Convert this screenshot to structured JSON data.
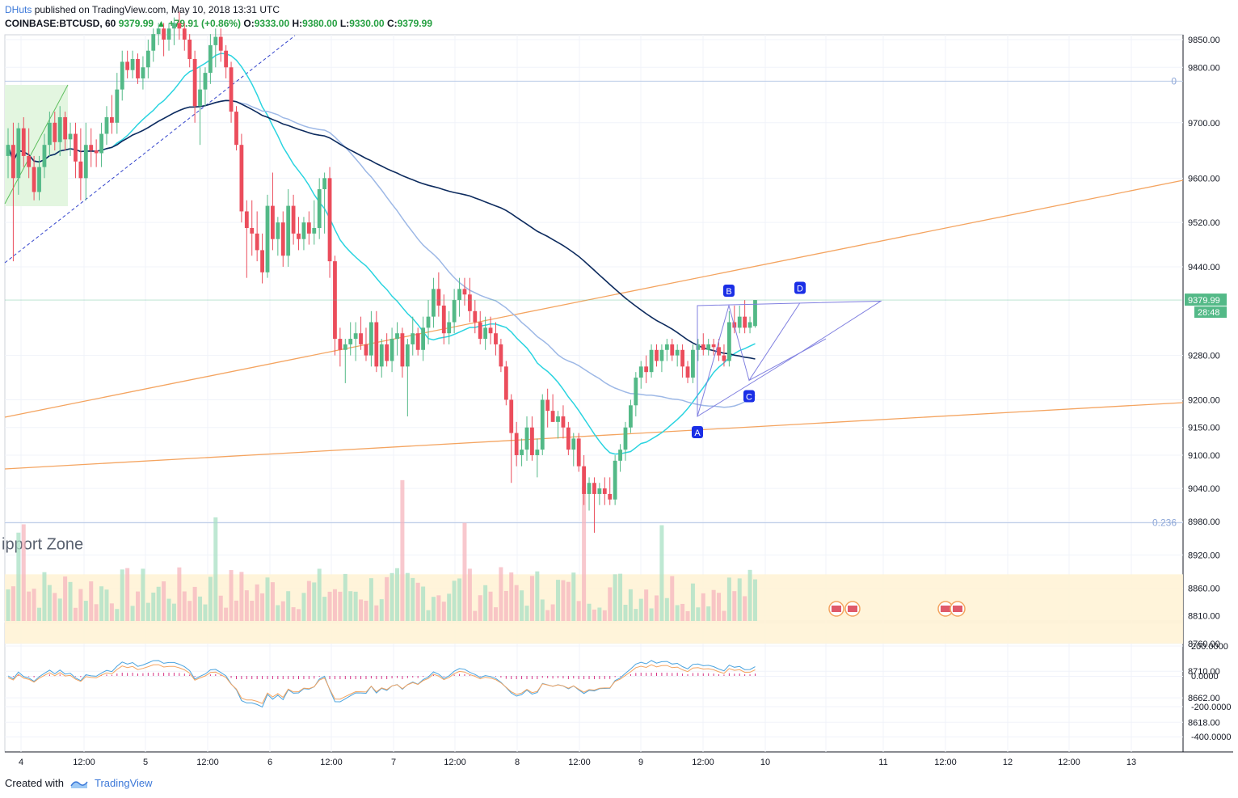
{
  "header": {
    "author": "DHuts",
    "published_on": "published on TradingView.com, May 10, 2018 13:31 UTC",
    "symbol": "COINBASE:BTCUSD, 60",
    "last": "9379.99",
    "change": "▲ +79.91 (+0.86%)",
    "o_label": "O:",
    "o_value": "9333.00",
    "h_label": "H:",
    "h_value": "9380.00",
    "l_label": "L:",
    "l_value": "9330.00",
    "c_label": "C:",
    "c_value": "9379.99"
  },
  "footer": {
    "created_with": "Created with",
    "brand": "TradingView"
  },
  "colors": {
    "up": "#53b987",
    "down": "#eb4d5c",
    "ma_fast": "#2ad4e0",
    "ma_mid": "#9db8e6",
    "ma_slow": "#0d2b5e",
    "trend": "#f4a460",
    "pattern": "#8080e0",
    "zone": "#fff3d6"
  },
  "chart_data": {
    "type": "candlestick",
    "symbol": "COINBASE:BTCUSD",
    "interval": "60",
    "y_ticks": [
      9850,
      9800,
      9700,
      9600,
      9520,
      9440,
      9280,
      9200,
      9150,
      9100,
      9040,
      8980,
      8920,
      8860,
      8810,
      8760,
      8710,
      8662,
      8618
    ],
    "y_tick_labels": [
      "9850.00",
      "9800.00",
      "9700.00",
      "9600.00",
      "9520.00",
      "9440.00",
      "9280.00",
      "9200.00",
      "9150.00",
      "9100.00",
      "9040.00",
      "8980.00",
      "8920.00",
      "8860.00",
      "8810.00",
      "8760.00",
      "8710.00",
      "8662.00",
      "8618.00"
    ],
    "x_tick_labels": [
      "4",
      "12:00",
      "5",
      "12:00",
      "6",
      "12:00",
      "7",
      "12:00",
      "8",
      "12:00",
      "9",
      "12:00",
      "10",
      "",
      "11",
      "12:00",
      "12",
      "12:00",
      "13"
    ],
    "last_price_label": "9379.99",
    "countdown_label": "28:48",
    "fib_labels": [
      {
        "text": "0",
        "price": 9775
      },
      {
        "text": "0.236",
        "price": 8978
      }
    ],
    "pattern_points": [
      {
        "label": "A",
        "price": 9170
      },
      {
        "label": "B",
        "price": 9370
      },
      {
        "label": "C",
        "price": 9235
      },
      {
        "label": "D",
        "price": 9375
      }
    ],
    "zone_label": "ipport Zone",
    "candles": [
      {
        "o": 9640,
        "h": 9690,
        "l": 9600,
        "c": 9660
      },
      {
        "o": 9660,
        "h": 9700,
        "l": 9450,
        "c": 9600
      },
      {
        "o": 9600,
        "h": 9700,
        "l": 9570,
        "c": 9690
      },
      {
        "o": 9690,
        "h": 9710,
        "l": 9620,
        "c": 9640
      },
      {
        "o": 9640,
        "h": 9690,
        "l": 9600,
        "c": 9620
      },
      {
        "o": 9620,
        "h": 9640,
        "l": 9560,
        "c": 9575
      },
      {
        "o": 9575,
        "h": 9640,
        "l": 9560,
        "c": 9620
      },
      {
        "o": 9620,
        "h": 9680,
        "l": 9600,
        "c": 9660
      },
      {
        "o": 9660,
        "h": 9720,
        "l": 9640,
        "c": 9700
      },
      {
        "o": 9700,
        "h": 9720,
        "l": 9650,
        "c": 9665
      },
      {
        "o": 9665,
        "h": 9730,
        "l": 9640,
        "c": 9710
      },
      {
        "o": 9710,
        "h": 9720,
        "l": 9650,
        "c": 9670
      },
      {
        "o": 9670,
        "h": 9700,
        "l": 9640,
        "c": 9680
      },
      {
        "o": 9680,
        "h": 9700,
        "l": 9600,
        "c": 9630
      },
      {
        "o": 9630,
        "h": 9690,
        "l": 9560,
        "c": 9600
      },
      {
        "o": 9600,
        "h": 9700,
        "l": 9560,
        "c": 9660
      },
      {
        "o": 9660,
        "h": 9690,
        "l": 9620,
        "c": 9650
      },
      {
        "o": 9650,
        "h": 9670,
        "l": 9620,
        "c": 9645
      },
      {
        "o": 9645,
        "h": 9700,
        "l": 9620,
        "c": 9680
      },
      {
        "o": 9680,
        "h": 9730,
        "l": 9660,
        "c": 9710
      },
      {
        "o": 9710,
        "h": 9750,
        "l": 9680,
        "c": 9700
      },
      {
        "o": 9700,
        "h": 9790,
        "l": 9680,
        "c": 9760
      },
      {
        "o": 9760,
        "h": 9830,
        "l": 9740,
        "c": 9810
      },
      {
        "o": 9810,
        "h": 9830,
        "l": 9780,
        "c": 9795
      },
      {
        "o": 9795,
        "h": 9830,
        "l": 9780,
        "c": 9815
      },
      {
        "o": 9815,
        "h": 9825,
        "l": 9770,
        "c": 9780
      },
      {
        "o": 9780,
        "h": 9820,
        "l": 9760,
        "c": 9800
      },
      {
        "o": 9800,
        "h": 9850,
        "l": 9780,
        "c": 9830
      },
      {
        "o": 9830,
        "h": 9870,
        "l": 9810,
        "c": 9860
      },
      {
        "o": 9860,
        "h": 9880,
        "l": 9840,
        "c": 9870
      },
      {
        "o": 9870,
        "h": 9880,
        "l": 9820,
        "c": 9850
      },
      {
        "o": 9850,
        "h": 9880,
        "l": 9830,
        "c": 9870
      },
      {
        "o": 9870,
        "h": 9890,
        "l": 9840,
        "c": 9880
      },
      {
        "o": 9880,
        "h": 9900,
        "l": 9850,
        "c": 9870
      },
      {
        "o": 9870,
        "h": 9880,
        "l": 9830,
        "c": 9850
      },
      {
        "o": 9850,
        "h": 9860,
        "l": 9800,
        "c": 9815
      },
      {
        "o": 9815,
        "h": 9830,
        "l": 9700,
        "c": 9730
      },
      {
        "o": 9730,
        "h": 9800,
        "l": 9660,
        "c": 9760
      },
      {
        "o": 9760,
        "h": 9800,
        "l": 9730,
        "c": 9790
      },
      {
        "o": 9790,
        "h": 9860,
        "l": 9770,
        "c": 9840
      },
      {
        "o": 9840,
        "h": 9870,
        "l": 9800,
        "c": 9855
      },
      {
        "o": 9855,
        "h": 9870,
        "l": 9810,
        "c": 9830
      },
      {
        "o": 9830,
        "h": 9840,
        "l": 9780,
        "c": 9800
      },
      {
        "o": 9800,
        "h": 9810,
        "l": 9700,
        "c": 9720
      },
      {
        "o": 9720,
        "h": 9730,
        "l": 9650,
        "c": 9660
      },
      {
        "o": 9660,
        "h": 9680,
        "l": 9520,
        "c": 9540
      },
      {
        "o": 9540,
        "h": 9560,
        "l": 9420,
        "c": 9510
      },
      {
        "o": 9510,
        "h": 9560,
        "l": 9460,
        "c": 9500
      },
      {
        "o": 9500,
        "h": 9540,
        "l": 9450,
        "c": 9470
      },
      {
        "o": 9470,
        "h": 9500,
        "l": 9410,
        "c": 9430
      },
      {
        "o": 9430,
        "h": 9570,
        "l": 9420,
        "c": 9550
      },
      {
        "o": 9550,
        "h": 9610,
        "l": 9470,
        "c": 9490
      },
      {
        "o": 9490,
        "h": 9530,
        "l": 9460,
        "c": 9520
      },
      {
        "o": 9520,
        "h": 9540,
        "l": 9440,
        "c": 9460
      },
      {
        "o": 9460,
        "h": 9580,
        "l": 9440,
        "c": 9550
      },
      {
        "o": 9550,
        "h": 9570,
        "l": 9480,
        "c": 9500
      },
      {
        "o": 9500,
        "h": 9530,
        "l": 9470,
        "c": 9490
      },
      {
        "o": 9490,
        "h": 9530,
        "l": 9470,
        "c": 9520
      },
      {
        "o": 9520,
        "h": 9540,
        "l": 9480,
        "c": 9500
      },
      {
        "o": 9500,
        "h": 9560,
        "l": 9480,
        "c": 9510
      },
      {
        "o": 9510,
        "h": 9600,
        "l": 9490,
        "c": 9580
      },
      {
        "o": 9580,
        "h": 9610,
        "l": 9500,
        "c": 9600
      },
      {
        "o": 9600,
        "h": 9620,
        "l": 9420,
        "c": 9450
      },
      {
        "o": 9450,
        "h": 9460,
        "l": 9280,
        "c": 9310
      },
      {
        "o": 9310,
        "h": 9330,
        "l": 9260,
        "c": 9290
      },
      {
        "o": 9290,
        "h": 9310,
        "l": 9230,
        "c": 9300
      },
      {
        "o": 9300,
        "h": 9340,
        "l": 9280,
        "c": 9310
      },
      {
        "o": 9310,
        "h": 9340,
        "l": 9270,
        "c": 9320
      },
      {
        "o": 9320,
        "h": 9350,
        "l": 9290,
        "c": 9300
      },
      {
        "o": 9300,
        "h": 9330,
        "l": 9270,
        "c": 9280
      },
      {
        "o": 9280,
        "h": 9360,
        "l": 9260,
        "c": 9340
      },
      {
        "o": 9340,
        "h": 9360,
        "l": 9250,
        "c": 9260
      },
      {
        "o": 9260,
        "h": 9310,
        "l": 9240,
        "c": 9300
      },
      {
        "o": 9300,
        "h": 9320,
        "l": 9260,
        "c": 9270
      },
      {
        "o": 9270,
        "h": 9330,
        "l": 9250,
        "c": 9310
      },
      {
        "o": 9310,
        "h": 9340,
        "l": 9280,
        "c": 9320
      },
      {
        "o": 9320,
        "h": 9330,
        "l": 9240,
        "c": 9260
      },
      {
        "o": 9260,
        "h": 9310,
        "l": 9170,
        "c": 9300
      },
      {
        "o": 9300,
        "h": 9350,
        "l": 9280,
        "c": 9320
      },
      {
        "o": 9320,
        "h": 9330,
        "l": 9280,
        "c": 9290
      },
      {
        "o": 9290,
        "h": 9350,
        "l": 9270,
        "c": 9330
      },
      {
        "o": 9330,
        "h": 9380,
        "l": 9300,
        "c": 9350
      },
      {
        "o": 9350,
        "h": 9420,
        "l": 9330,
        "c": 9400
      },
      {
        "o": 9400,
        "h": 9430,
        "l": 9350,
        "c": 9370
      },
      {
        "o": 9370,
        "h": 9390,
        "l": 9300,
        "c": 9320
      },
      {
        "o": 9320,
        "h": 9360,
        "l": 9300,
        "c": 9340
      },
      {
        "o": 9340,
        "h": 9400,
        "l": 9320,
        "c": 9380
      },
      {
        "o": 9380,
        "h": 9420,
        "l": 9350,
        "c": 9400
      },
      {
        "o": 9400,
        "h": 9420,
        "l": 9370,
        "c": 9390
      },
      {
        "o": 9390,
        "h": 9420,
        "l": 9340,
        "c": 9360
      },
      {
        "o": 9360,
        "h": 9380,
        "l": 9320,
        "c": 9340
      },
      {
        "o": 9340,
        "h": 9360,
        "l": 9300,
        "c": 9310
      },
      {
        "o": 9310,
        "h": 9350,
        "l": 9290,
        "c": 9330
      },
      {
        "o": 9330,
        "h": 9350,
        "l": 9300,
        "c": 9320
      },
      {
        "o": 9320,
        "h": 9340,
        "l": 9280,
        "c": 9300
      },
      {
        "o": 9300,
        "h": 9310,
        "l": 9250,
        "c": 9260
      },
      {
        "o": 9260,
        "h": 9270,
        "l": 9190,
        "c": 9200
      },
      {
        "o": 9200,
        "h": 9210,
        "l": 9050,
        "c": 9140
      },
      {
        "o": 9140,
        "h": 9160,
        "l": 9080,
        "c": 9100
      },
      {
        "o": 9100,
        "h": 9130,
        "l": 9080,
        "c": 9110
      },
      {
        "o": 9110,
        "h": 9170,
        "l": 9090,
        "c": 9150
      },
      {
        "o": 9150,
        "h": 9170,
        "l": 9090,
        "c": 9100
      },
      {
        "o": 9100,
        "h": 9130,
        "l": 9060,
        "c": 9110
      },
      {
        "o": 9110,
        "h": 9210,
        "l": 9100,
        "c": 9200
      },
      {
        "o": 9200,
        "h": 9220,
        "l": 9150,
        "c": 9180
      },
      {
        "o": 9180,
        "h": 9210,
        "l": 9160,
        "c": 9160
      },
      {
        "o": 9160,
        "h": 9180,
        "l": 9130,
        "c": 9170
      },
      {
        "o": 9170,
        "h": 9190,
        "l": 9130,
        "c": 9150
      },
      {
        "o": 9150,
        "h": 9160,
        "l": 9100,
        "c": 9110
      },
      {
        "o": 9110,
        "h": 9140,
        "l": 9080,
        "c": 9130
      },
      {
        "o": 9130,
        "h": 9140,
        "l": 9070,
        "c": 9080
      },
      {
        "o": 9080,
        "h": 9100,
        "l": 9010,
        "c": 9030
      },
      {
        "o": 9030,
        "h": 9060,
        "l": 9000,
        "c": 9050
      },
      {
        "o": 9050,
        "h": 9060,
        "l": 8960,
        "c": 9030
      },
      {
        "o": 9030,
        "h": 9050,
        "l": 9010,
        "c": 9040
      },
      {
        "o": 9040,
        "h": 9060,
        "l": 9010,
        "c": 9030
      },
      {
        "o": 9030,
        "h": 9060,
        "l": 9010,
        "c": 9020
      },
      {
        "o": 9020,
        "h": 9100,
        "l": 9010,
        "c": 9090
      },
      {
        "o": 9090,
        "h": 9120,
        "l": 9070,
        "c": 9110
      },
      {
        "o": 9110,
        "h": 9160,
        "l": 9090,
        "c": 9150
      },
      {
        "o": 9150,
        "h": 9200,
        "l": 9140,
        "c": 9190
      },
      {
        "o": 9190,
        "h": 9250,
        "l": 9170,
        "c": 9240
      },
      {
        "o": 9240,
        "h": 9270,
        "l": 9220,
        "c": 9260
      },
      {
        "o": 9260,
        "h": 9280,
        "l": 9230,
        "c": 9250
      },
      {
        "o": 9250,
        "h": 9300,
        "l": 9240,
        "c": 9290
      },
      {
        "o": 9290,
        "h": 9300,
        "l": 9260,
        "c": 9270
      },
      {
        "o": 9270,
        "h": 9300,
        "l": 9250,
        "c": 9290
      },
      {
        "o": 9290,
        "h": 9310,
        "l": 9270,
        "c": 9300
      },
      {
        "o": 9300,
        "h": 9310,
        "l": 9270,
        "c": 9280
      },
      {
        "o": 9280,
        "h": 9300,
        "l": 9260,
        "c": 9290
      },
      {
        "o": 9290,
        "h": 9300,
        "l": 9240,
        "c": 9260
      },
      {
        "o": 9260,
        "h": 9270,
        "l": 9230,
        "c": 9240
      },
      {
        "o": 9240,
        "h": 9300,
        "l": 9230,
        "c": 9290
      },
      {
        "o": 9290,
        "h": 9310,
        "l": 9270,
        "c": 9300
      },
      {
        "o": 9300,
        "h": 9320,
        "l": 9280,
        "c": 9290
      },
      {
        "o": 9290,
        "h": 9310,
        "l": 9280,
        "c": 9300
      },
      {
        "o": 9300,
        "h": 9310,
        "l": 9280,
        "c": 9295
      },
      {
        "o": 9295,
        "h": 9310,
        "l": 9270,
        "c": 9280
      },
      {
        "o": 9280,
        "h": 9300,
        "l": 9260,
        "c": 9270
      },
      {
        "o": 9270,
        "h": 9360,
        "l": 9260,
        "c": 9340
      },
      {
        "o": 9340,
        "h": 9370,
        "l": 9320,
        "c": 9330
      },
      {
        "o": 9330,
        "h": 9370,
        "l": 9320,
        "c": 9350
      },
      {
        "o": 9350,
        "h": 9380,
        "l": 9320,
        "c": 9330
      },
      {
        "o": 9330,
        "h": 9350,
        "l": 9320,
        "c": 9340
      },
      {
        "o": 9333,
        "h": 9380,
        "l": 9330,
        "c": 9380
      }
    ]
  }
}
